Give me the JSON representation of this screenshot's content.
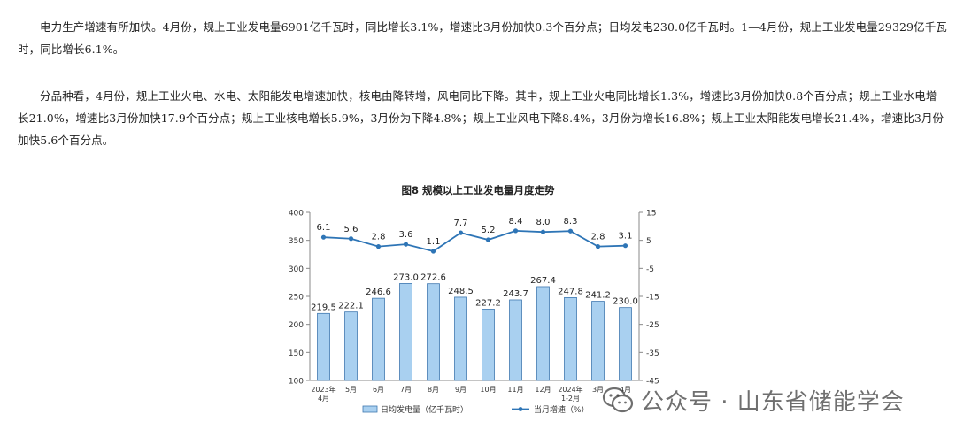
{
  "article": {
    "paragraph1": "电力生产增速有所加快。4月份，规上工业发电量6901亿千瓦时，同比增长3.1%，增速比3月份加快0.3个百分点；日均发电230.0亿千瓦时。1—4月份，规上工业发电量29329亿千瓦时，同比增长6.1%。",
    "paragraph2": "分品种看，4月份，规上工业火电、水电、太阳能发电增速加快，核电由降转增，风电同比下降。其中，规上工业火电同比增长1.3%，增速比3月份加快0.8个百分点；规上工业水电增长21.0%，增速比3月份加快17.9个百分点；规上工业核电增长5.9%，3月份为下降4.8%；规上工业风电下降8.4%，3月份为增长16.8%；规上工业太阳能发电增长21.4%，增速比3月份加快5.6个百分点。"
  },
  "chart_data": {
    "type": "bar+line",
    "title": "图8  规模以上工业发电量月度走势",
    "categories": [
      [
        "2023年",
        "4月"
      ],
      [
        "5月"
      ],
      [
        "6月"
      ],
      [
        "7月"
      ],
      [
        "8月"
      ],
      [
        "9月"
      ],
      [
        "10月"
      ],
      [
        "11月"
      ],
      [
        "12月"
      ],
      [
        "2024年",
        "1-2月"
      ],
      [
        "3月"
      ],
      [
        "4月"
      ]
    ],
    "left_axis": {
      "min": 100,
      "max": 400,
      "ticks": [
        100,
        150,
        200,
        250,
        300,
        350,
        400
      ]
    },
    "right_axis": {
      "min": -45,
      "max": 15,
      "ticks": [
        -45,
        -35,
        -25,
        -15,
        -5,
        5,
        15
      ]
    },
    "series": [
      {
        "name": "日均发电量（亿千瓦时）",
        "type": "bar",
        "axis": "left",
        "values": [
          219.5,
          222.1,
          246.6,
          273.0,
          272.6,
          248.5,
          227.2,
          243.7,
          267.4,
          247.8,
          241.2,
          230.0
        ],
        "labels": [
          "219.5",
          "222.1",
          "246.6",
          "273.0",
          "272.6",
          "248.5",
          "227.2",
          "243.7",
          "267.4",
          "247.8",
          "241.2",
          "230.0"
        ]
      },
      {
        "name": "当月增速（%）",
        "type": "line",
        "axis": "right",
        "values": [
          6.1,
          5.6,
          2.8,
          3.6,
          1.1,
          7.7,
          5.2,
          8.4,
          8.0,
          8.3,
          2.8,
          3.1
        ],
        "labels": [
          "6.1",
          "5.6",
          "2.8",
          "3.6",
          "1.1",
          "7.7",
          "5.2",
          "8.4",
          "8.0",
          "8.3",
          "2.8",
          "3.1"
        ]
      }
    ],
    "colors": {
      "bar_fill": "#a9d0f0",
      "bar_stroke": "#3f78b0",
      "line": "#2e75b6",
      "axis": "#888888"
    },
    "grid": false,
    "legend": "bottom"
  },
  "watermark": {
    "text": "公众号 · 山东省储能学会",
    "icon": "wechat-icon"
  }
}
